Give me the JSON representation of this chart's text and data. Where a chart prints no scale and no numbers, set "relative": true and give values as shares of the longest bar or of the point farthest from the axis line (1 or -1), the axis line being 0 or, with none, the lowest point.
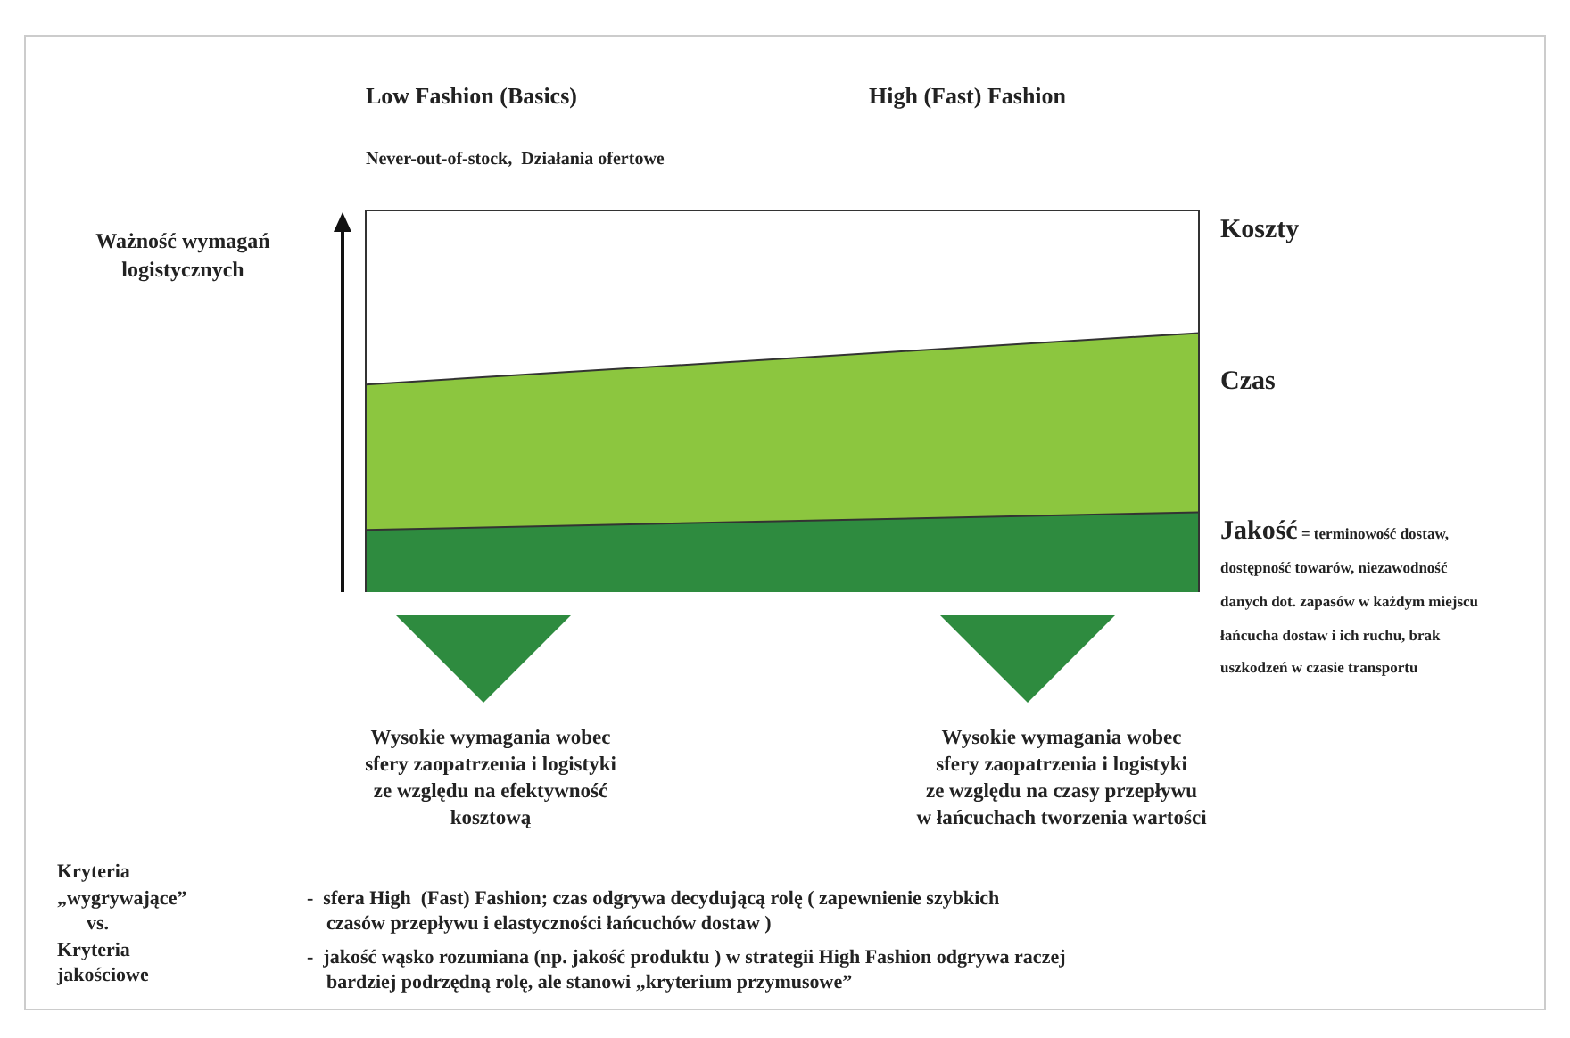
{
  "chart_data": {
    "type": "area",
    "stacked": true,
    "relative": true,
    "ylabel": "Ważność wymagań logistycznych",
    "categories": [
      null,
      null
    ],
    "series": [
      {
        "name": "Jakość",
        "color": "#2e8b3f",
        "values": [
          0.163,
          0.209
        ]
      },
      {
        "name": "Czas",
        "color": "#8cc63f",
        "values": [
          0.381,
          0.47
        ]
      },
      {
        "name": "Koszty",
        "color": "#ffffff",
        "values": [
          0.456,
          0.321
        ]
      }
    ],
    "annotations": [
      "Low Fashion (Basics)",
      "High (Fast) Fashion",
      "Never-out-of-stock,  Działania ofertowe",
      "= terminowość dostaw, dostępność towarów, niezawodność danych dot. zapasów w każdym miejscu łańcucha dostaw i ich ruchu, brak uszkodzeń w czasie transportu",
      "Wysokie wymagania wobec\nsfery zaopatrzenia i logistyki\nze względu na efektywność\nkosztową",
      "Wysokie wymagania wobec\nsfery zaopatrzenia i logistyki\nze względu na czasy przepływu\nw łańcuchach tworzenia wartości",
      "Kryteria\n„wygrywające”\n      vs.\nKryteria\njakościowe",
      "-  sfera High  (Fast) Fashion; czas odgrywa decydującą rolę ( zapewnienie szybkich\n    czasów przepływu i elastyczności łańcuchów dostaw )",
      "-  jakość wąsko rozumiana (np. jakość produktu ) w strategii High Fashion odgrywa raczej\n    bardziej podrzędną rolę, ale stanowi „kryterium przymusowe”"
    ],
    "legend": false
  }
}
